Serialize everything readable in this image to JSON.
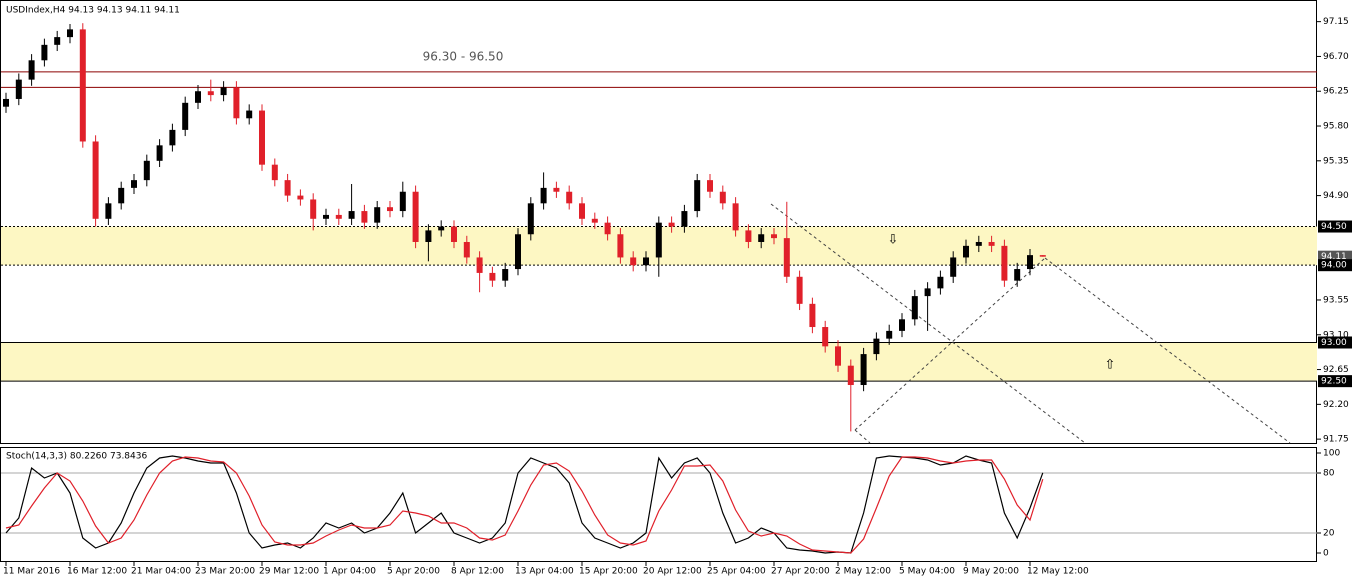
{
  "chart_data": {
    "type": "candlestick",
    "title": "USDIndex,H4  94.13 94.13 94.11 94.11",
    "annotation": "96.30 - 96.50",
    "ylim": [
      91.7,
      97.43
    ],
    "yticks": [
      97.15,
      {
        "value": 96.7,
        "label": "96.70"
      },
      96.25,
      {
        "value": 95.8,
        "label": "95.80"
      },
      95.35,
      {
        "value": 94.9,
        "label": "94.90"
      },
      93.55,
      {
        "value": 93.1,
        "label": "93.10"
      },
      92.65,
      {
        "value": 92.2,
        "label": "92.20"
      },
      91.75
    ],
    "xticks": [
      {
        "value": 0,
        "label": "11 Mar 2016"
      },
      {
        "value": 5,
        "label": "16 Mar 12:00"
      },
      {
        "value": 10,
        "label": "21 Mar 04:00"
      },
      {
        "value": 15,
        "label": "23 Mar 20:00"
      },
      {
        "value": 20,
        "label": "29 Mar 12:00"
      },
      {
        "value": 25,
        "label": "1 Apr 04:00"
      },
      {
        "value": 30,
        "label": "5 Apr 20:00"
      },
      {
        "value": 35,
        "label": "8 Apr 12:00"
      },
      {
        "value": 40,
        "label": "13 Apr 04:00"
      },
      {
        "value": 45,
        "label": "15 Apr 20:00"
      },
      {
        "value": 50,
        "label": "20 Apr 12:00"
      },
      {
        "value": 55,
        "label": "25 Apr 04:00"
      },
      {
        "value": 60,
        "label": "27 Apr 20:00"
      },
      {
        "value": 65,
        "label": "2 May 12:00"
      },
      {
        "value": 70,
        "label": "5 May 04:00"
      },
      {
        "value": 75,
        "label": "9 May 20:00"
      },
      {
        "value": 80,
        "label": "12 May 12:00"
      }
    ],
    "up_color": "#000000",
    "down_color": "#e0202a",
    "open": [
      96.05,
      96.15,
      96.4,
      96.65,
      96.85,
      96.95,
      97.05,
      95.6,
      94.6,
      94.8,
      95.0,
      95.1,
      95.35,
      95.55,
      95.75,
      96.1,
      96.25,
      96.2,
      96.3,
      95.9,
      96.0,
      95.3,
      95.1,
      94.9,
      94.85,
      94.6,
      94.65,
      94.6,
      94.7,
      94.55,
      94.75,
      94.7,
      94.95,
      94.3,
      94.45,
      94.5,
      94.3,
      94.1,
      93.9,
      93.8,
      93.95,
      94.4,
      94.8,
      95.0,
      94.95,
      94.8,
      94.6,
      94.55,
      94.4,
      94.1,
      94.0,
      94.1,
      94.55,
      94.5,
      94.7,
      95.1,
      94.95,
      94.8,
      94.45,
      94.3,
      94.4,
      94.35,
      93.85,
      93.5,
      93.2,
      92.95,
      92.7,
      92.45,
      92.85,
      93.05,
      93.15,
      93.3,
      93.6,
      93.7,
      93.85,
      94.1,
      94.25,
      94.3,
      94.25,
      93.8,
      93.95,
      94.13
    ],
    "high": [
      96.23,
      96.48,
      96.73,
      96.93,
      97.03,
      97.12,
      97.13,
      95.68,
      94.88,
      95.08,
      95.18,
      95.43,
      95.63,
      95.83,
      96.18,
      96.33,
      96.4,
      96.38,
      96.38,
      96.08,
      96.08,
      95.38,
      95.18,
      94.98,
      94.93,
      94.73,
      94.73,
      95.05,
      94.78,
      94.83,
      94.83,
      95.08,
      95.03,
      94.53,
      94.58,
      94.58,
      94.38,
      94.18,
      93.98,
      94.03,
      94.48,
      94.88,
      95.2,
      95.08,
      95.03,
      94.88,
      94.68,
      94.63,
      94.48,
      94.18,
      94.18,
      94.63,
      94.63,
      94.78,
      95.18,
      95.18,
      95.03,
      94.88,
      94.53,
      94.48,
      94.48,
      94.82,
      93.93,
      93.58,
      93.28,
      93.03,
      92.78,
      92.93,
      93.13,
      93.23,
      93.38,
      93.68,
      93.78,
      93.93,
      94.18,
      94.33,
      94.38,
      94.38,
      94.33,
      94.03,
      94.21,
      94.13
    ],
    "low": [
      95.97,
      96.07,
      96.32,
      96.57,
      96.77,
      96.87,
      95.52,
      94.5,
      94.52,
      94.72,
      94.92,
      95.02,
      95.27,
      95.47,
      95.67,
      96.02,
      96.12,
      96.12,
      95.82,
      95.82,
      95.22,
      95.02,
      94.82,
      94.77,
      94.45,
      94.52,
      94.52,
      94.52,
      94.47,
      94.47,
      94.62,
      94.62,
      94.22,
      94.05,
      94.37,
      94.22,
      94.02,
      93.65,
      93.72,
      93.72,
      93.87,
      94.32,
      94.72,
      94.87,
      94.72,
      94.52,
      94.47,
      94.32,
      94.02,
      93.92,
      93.92,
      93.85,
      94.42,
      94.42,
      94.62,
      94.87,
      94.72,
      94.37,
      94.22,
      94.22,
      94.27,
      93.77,
      93.42,
      93.12,
      92.87,
      92.62,
      91.85,
      92.37,
      92.77,
      92.97,
      93.07,
      93.22,
      93.15,
      93.62,
      93.77,
      94.02,
      94.17,
      94.17,
      93.72,
      93.72,
      93.87,
      94.11
    ],
    "close": [
      96.15,
      96.4,
      96.65,
      96.85,
      96.95,
      97.05,
      95.6,
      94.6,
      94.8,
      95.0,
      95.1,
      95.35,
      95.55,
      95.75,
      96.1,
      96.25,
      96.2,
      96.3,
      95.9,
      96.0,
      95.3,
      95.1,
      94.9,
      94.85,
      94.6,
      94.65,
      94.6,
      94.7,
      94.55,
      94.75,
      94.7,
      94.95,
      94.3,
      94.45,
      94.5,
      94.3,
      94.1,
      93.9,
      93.8,
      93.95,
      94.4,
      94.8,
      95.0,
      94.95,
      94.8,
      94.6,
      94.55,
      94.4,
      94.1,
      94.0,
      94.1,
      94.55,
      94.5,
      94.7,
      95.1,
      94.95,
      94.8,
      94.45,
      94.3,
      94.4,
      94.35,
      93.85,
      93.5,
      93.2,
      92.95,
      92.7,
      92.45,
      92.85,
      93.05,
      93.15,
      93.3,
      93.6,
      93.7,
      93.85,
      94.1,
      94.25,
      94.3,
      94.25,
      93.8,
      93.95,
      94.13,
      94.11
    ],
    "resistance": [
      {
        "value": 96.5,
        "color": "#8b0000"
      },
      {
        "value": 96.3,
        "color": "#8b0000"
      }
    ],
    "zones": [
      {
        "from": 94.0,
        "to": 94.5,
        "color": "#fdf7c3"
      },
      {
        "from": 92.5,
        "to": 93.0,
        "color": "#fdf7c3"
      }
    ],
    "levels": [
      {
        "value": 94.5,
        "label": "94.50"
      },
      {
        "value": 94.11,
        "label": "94.11"
      },
      {
        "value": 94.0,
        "label": "94.00"
      },
      {
        "value": 93.0,
        "label": "93.00"
      },
      {
        "value": 92.5,
        "label": "92.50"
      }
    ],
    "stoch": {
      "title": "Stoch(14,3,3) 80.2260 73.8436",
      "ylim": [
        -9,
        106
      ],
      "yticks": [
        100,
        80,
        20,
        0
      ],
      "levels": [
        80,
        20
      ],
      "series": [
        {
          "color": "#000000",
          "values": [
            20,
            35,
            85,
            75,
            80,
            60,
            15,
            5,
            10,
            30,
            60,
            85,
            95,
            97,
            95,
            92,
            90,
            90,
            60,
            20,
            5,
            8,
            10,
            5,
            15,
            30,
            25,
            30,
            20,
            25,
            40,
            60,
            20,
            30,
            40,
            20,
            15,
            10,
            15,
            30,
            80,
            95,
            90,
            85,
            70,
            30,
            15,
            10,
            5,
            10,
            20,
            95,
            75,
            90,
            95,
            80,
            40,
            10,
            15,
            25,
            20,
            5,
            3,
            2,
            0,
            1,
            0,
            40,
            95,
            97,
            96,
            95,
            93,
            88,
            90,
            97,
            93,
            90,
            40,
            15,
            45,
            80.226
          ]
        },
        {
          "color": "#e0202a",
          "values": [
            25,
            28,
            47,
            65,
            80,
            72,
            52,
            27,
            10,
            15,
            33,
            58,
            80,
            92,
            96,
            95,
            92,
            91,
            80,
            57,
            28,
            11,
            8,
            8,
            10,
            17,
            23,
            28,
            25,
            25,
            28,
            42,
            40,
            37,
            30,
            30,
            25,
            15,
            13,
            18,
            42,
            68,
            88,
            90,
            82,
            62,
            38,
            18,
            10,
            8,
            12,
            42,
            63,
            87,
            87,
            88,
            72,
            43,
            22,
            17,
            20,
            17,
            9,
            3,
            2,
            1,
            0,
            14,
            45,
            77,
            96,
            96,
            95,
            92,
            90,
            92,
            93,
            93,
            74,
            48,
            33,
            73.844
          ]
        }
      ]
    }
  }
}
